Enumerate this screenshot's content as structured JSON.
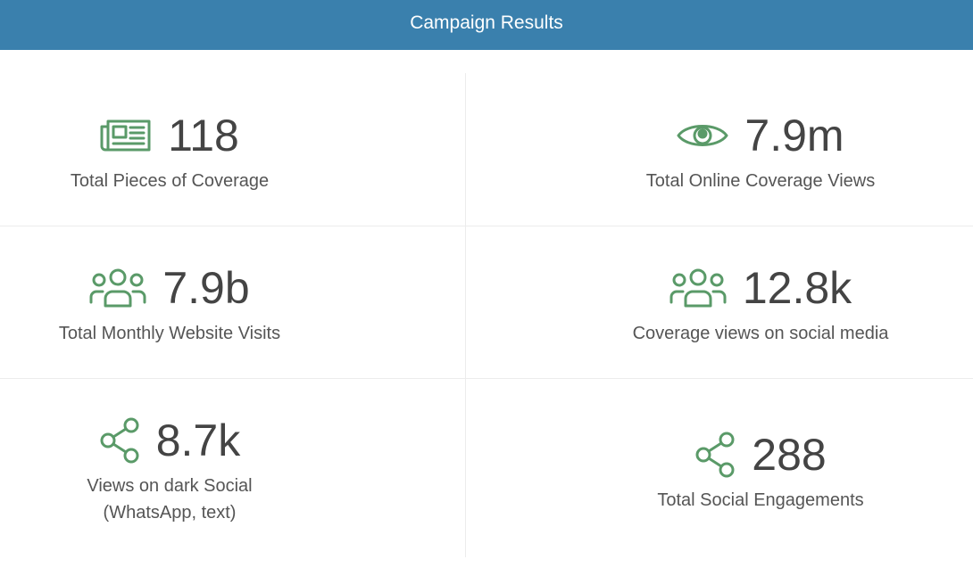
{
  "header": {
    "title": "Campaign Results"
  },
  "metrics": [
    {
      "value": "118",
      "label": "Total Pieces of Coverage"
    },
    {
      "value": "7.9m",
      "label": "Total Online Coverage Views"
    },
    {
      "value": "7.9b",
      "label": "Total Monthly Website Visits"
    },
    {
      "value": "12.8k",
      "label": "Coverage views on social media"
    },
    {
      "value": "8.7k",
      "label": "Views on dark Social",
      "note": "(WhatsApp, text)"
    },
    {
      "value": "288",
      "label": "Total Social Engagements"
    }
  ]
}
